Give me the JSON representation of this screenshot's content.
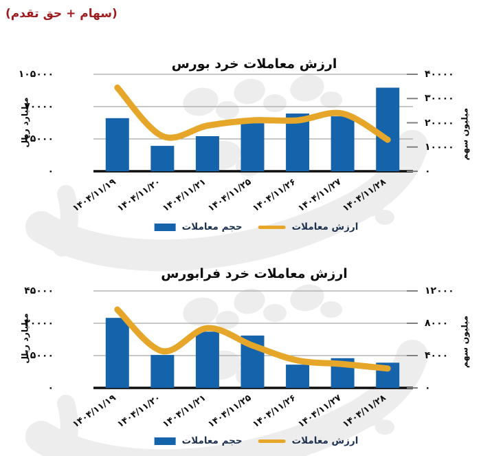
{
  "header": {
    "note": "(سهام + حق تقدم)"
  },
  "colors": {
    "bar": "#1564ab",
    "line": "#e6a62a",
    "header_note": "#9e1b1e",
    "grid": "#a6a6a6",
    "baseline": "#0d0d0d",
    "tick": "#7f7f7f",
    "legend_text": "#1d3251",
    "watermark": "#ededed"
  },
  "legend": {
    "bar_label": "حجم معاملات",
    "line_label": "ارزش معاملات"
  },
  "chart_data": [
    {
      "type": "bar+line",
      "title": "ارزش معاملات خرد بورس",
      "categories": [
        "۱۴۰۴/۱۱/۱۹",
        "۱۴۰۴/۱۱/۲۰",
        "۱۴۰۴/۱۱/۲۱",
        "۱۴۰۴/۱۱/۲۵",
        "۱۴۰۴/۱۱/۲۶",
        "۱۴۰۴/۱۱/۲۷",
        "۱۴۰۴/۱۱/۲۸"
      ],
      "series": [
        {
          "name": "حجم معاملات",
          "type": "bar",
          "axis": "left",
          "values": [
            57500,
            27500,
            38000,
            52000,
            62500,
            59500,
            90500
          ]
        },
        {
          "name": "ارزش معاملات",
          "type": "line",
          "axis": "right",
          "values": [
            34500,
            14500,
            18800,
            21000,
            21000,
            23800,
            13000
          ]
        }
      ],
      "left_axis": {
        "title": "میلیارد ریال",
        "max": 105000,
        "min": 0,
        "ticks": [
          {
            "label": "۱۰۵۰۰۰",
            "value": 105000
          },
          {
            "label": "۷۰۰۰۰",
            "value": 70000
          },
          {
            "label": "۳۵۰۰۰",
            "value": 35000
          },
          {
            "label": "۰",
            "value": 0
          }
        ]
      },
      "right_axis": {
        "title": "میلیون سهم",
        "max": 40000,
        "min": 0,
        "ticks": [
          {
            "label": "۴۰۰۰۰",
            "value": 40000
          },
          {
            "label": "۳۰۰۰۰",
            "value": 30000
          },
          {
            "label": "۲۰۰۰۰",
            "value": 20000
          },
          {
            "label": "۱۰۰۰۰",
            "value": 10000
          },
          {
            "label": "۰",
            "value": 0
          }
        ]
      },
      "grid": true,
      "legend_position": "bottom"
    },
    {
      "type": "bar+line",
      "title": "ارزش معاملات خرد فرابورس",
      "categories": [
        "۱۴۰۴/۱۱/۱۹",
        "۱۴۰۴/۱۱/۲۰",
        "۱۴۰۴/۱۱/۲۱",
        "۱۴۰۴/۱۱/۲۵",
        "۱۴۰۴/۱۱/۲۶",
        "۱۴۰۴/۱۱/۲۷",
        "۱۴۰۴/۱۱/۲۸"
      ],
      "series": [
        {
          "name": "حجم معاملات",
          "type": "bar",
          "axis": "left",
          "values": [
            32500,
            15300,
            26100,
            24300,
            10800,
            13800,
            11700
          ]
        },
        {
          "name": "ارزش معاملات",
          "type": "line",
          "axis": "right",
          "values": [
            9700,
            4550,
            7400,
            5250,
            3400,
            2950,
            2400
          ]
        }
      ],
      "left_axis": {
        "title": "میلیارد ریال",
        "max": 45000,
        "min": 0,
        "ticks": [
          {
            "label": "۴۵۰۰۰",
            "value": 45000
          },
          {
            "label": "۳۰۰۰۰",
            "value": 30000
          },
          {
            "label": "۱۵۰۰۰",
            "value": 15000
          },
          {
            "label": "۰",
            "value": 0
          }
        ]
      },
      "right_axis": {
        "title": "میلیون سهم",
        "max": 12000,
        "min": 0,
        "ticks": [
          {
            "label": "۱۲۰۰۰",
            "value": 12000
          },
          {
            "label": "۸۰۰۰",
            "value": 8000
          },
          {
            "label": "۴۰۰۰",
            "value": 4000
          },
          {
            "label": "۰",
            "value": 0
          }
        ]
      },
      "grid": true,
      "legend_position": "bottom"
    }
  ]
}
